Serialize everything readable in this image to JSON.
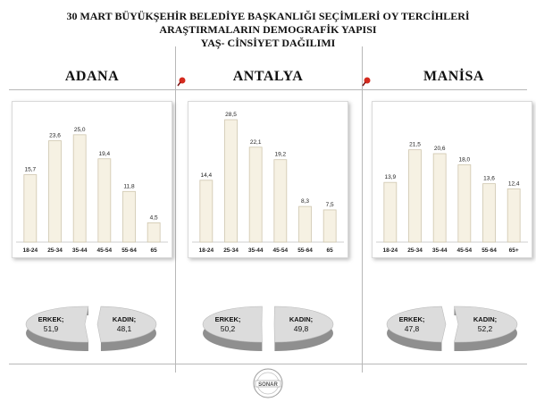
{
  "titles": {
    "line1": "30 MART BÜYÜKŞEHİR BELEDİYE BAŞKANLIĞI SEÇİMLERİ OY TERCİHLERİ",
    "line2": "ARAŞTIRMALARIN DEMOGRAFİK YAPISI",
    "line3": "YAŞ- CİNSİYET DAĞILIMI"
  },
  "logo_text": "SONAR",
  "colors": {
    "bar_fill": "#f6f1e3",
    "bar_stroke": "#cfc6ae",
    "pie_top": "#dcdcdc",
    "pie_side": "#8f8f8f",
    "pin": "#d42a1e"
  },
  "chart_data": [
    {
      "type": "bar",
      "title": "ADANA",
      "categories": [
        "18-24",
        "25-34",
        "35-44",
        "45-54",
        "55-64",
        "65"
      ],
      "values": [
        15.7,
        23.6,
        25.0,
        19.4,
        11.8,
        4.5
      ],
      "value_labels": [
        "15,7",
        "23,6",
        "25,0",
        "19,4",
        "11,8",
        "4,5"
      ],
      "ylim": [
        0,
        31
      ]
    },
    {
      "type": "bar",
      "title": "ANTALYA",
      "categories": [
        "18-24",
        "25-34",
        "35-44",
        "45-54",
        "55-64",
        "65"
      ],
      "values": [
        14.4,
        28.5,
        22.1,
        19.2,
        8.3,
        7.5
      ],
      "value_labels": [
        "14,4",
        "28,5",
        "22,1",
        "19,2",
        "8,3",
        "7,5"
      ],
      "ylim": [
        0,
        31
      ]
    },
    {
      "type": "bar",
      "title": "MANİSA",
      "categories": [
        "18-24",
        "25-34",
        "35-44",
        "45-54",
        "55-64",
        "65+"
      ],
      "values": [
        13.9,
        21.5,
        20.6,
        18.0,
        13.6,
        12.4
      ],
      "value_labels": [
        "13,9",
        "21,5",
        "20,6",
        "18,0",
        "13,6",
        "12,4"
      ],
      "ylim": [
        0,
        31
      ]
    },
    {
      "type": "pie",
      "title": "",
      "slices": [
        {
          "label": "ERKEK;",
          "value": 51.9,
          "value_label": "51,9"
        },
        {
          "label": "KADIN;",
          "value": 48.1,
          "value_label": "48,1"
        }
      ]
    },
    {
      "type": "pie",
      "title": "",
      "slices": [
        {
          "label": "ERKEK;",
          "value": 50.2,
          "value_label": "50,2"
        },
        {
          "label": "KADIN;",
          "value": 49.8,
          "value_label": "49,8"
        }
      ]
    },
    {
      "type": "pie",
      "title": "",
      "slices": [
        {
          "label": "ERKEK;",
          "value": 47.8,
          "value_label": "47,8"
        },
        {
          "label": "KADIN;",
          "value": 52.2,
          "value_label": "52,2"
        }
      ]
    }
  ]
}
